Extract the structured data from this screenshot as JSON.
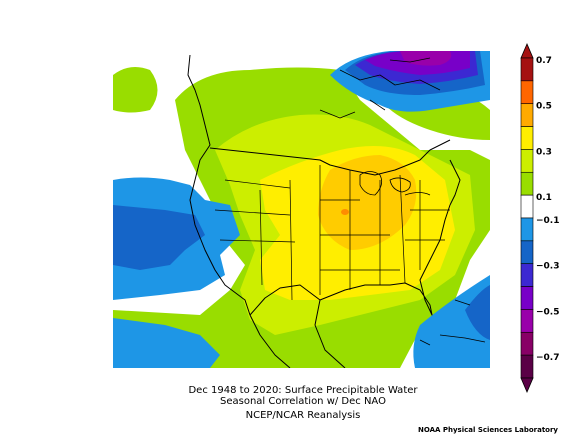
{
  "caption": {
    "line1": "Dec 1948 to 2020: Surface Precipitable Water",
    "line2": "Seasonal Correlation w/ Dec NAO",
    "line3": "NCEP/NCAR Reanalysis"
  },
  "credit": "NOAA Physical Sciences Laboratory",
  "colorbar": {
    "levels": [
      {
        "label": "0.7",
        "value": 0.7,
        "color": "#a51212"
      },
      {
        "label": "",
        "value": 0.6,
        "color": "#ff6600"
      },
      {
        "label": "0.5",
        "value": 0.5,
        "color": "#ffaa00"
      },
      {
        "label": "",
        "value": 0.4,
        "color": "#ffee00"
      },
      {
        "label": "0.3",
        "value": 0.3,
        "color": "#ccee00"
      },
      {
        "label": "",
        "value": 0.2,
        "color": "#99dd00"
      },
      {
        "label": "0.1",
        "value": 0.1,
        "color": "#ffffff"
      },
      {
        "label": "−0.1",
        "value": -0.1,
        "color": "#1e96e6"
      },
      {
        "label": "",
        "value": -0.2,
        "color": "#1565c8"
      },
      {
        "label": "−0.3",
        "value": -0.3,
        "color": "#3c28d2"
      },
      {
        "label": "",
        "value": -0.4,
        "color": "#7800c8"
      },
      {
        "label": "−0.5",
        "value": -0.5,
        "color": "#9900aa"
      },
      {
        "label": "",
        "value": -0.6,
        "color": "#880066"
      },
      {
        "label": "−0.7",
        "value": -0.7,
        "color": "#5a0046"
      }
    ],
    "colors": {
      "bin_neg_0_1_to_0_1": "#ffffff",
      "bin_0_1_to_0_2": "#99dd00",
      "bin_0_2_to_0_3": "#ccee00",
      "bin_0_3_to_0_4": "#ffee00",
      "bin_0_4_to_0_5": "#ffcc00",
      "bin_0_5_to_0_6": "#ff8c00",
      "bin_neg_0_1_to_neg_0_2": "#1e96e6",
      "bin_neg_0_2_to_neg_0_3": "#1565c8",
      "bin_neg_0_3_to_neg_0_4": "#3c28d2",
      "bin_neg_0_4_to_neg_0_5": "#7800c8",
      "bin_neg_0_5_to_neg_0_6": "#9900aa"
    }
  }
}
